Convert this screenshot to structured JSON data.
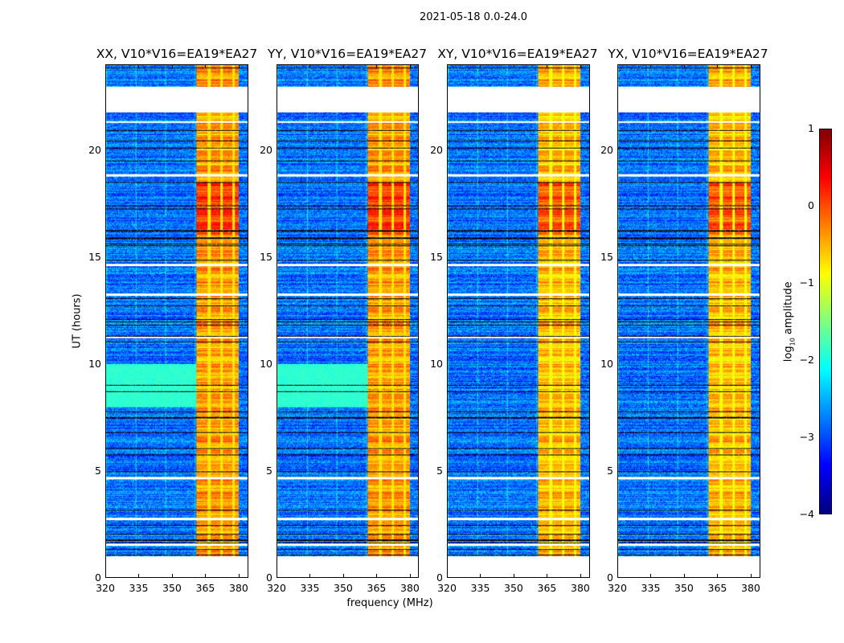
{
  "suptitle": "2021-05-18 0.0-24.0",
  "chart_data": {
    "type": "heatmap",
    "title": "2021-05-18 0.0-24.0",
    "xlabel": "frequency (MHz)",
    "ylabel": "UT (hours)",
    "xlim": [
      320,
      384
    ],
    "ylim": [
      0,
      24
    ],
    "xticks": [
      "320",
      "335",
      "350",
      "365",
      "380"
    ],
    "yticks": [
      "0",
      "5",
      "10",
      "15",
      "20"
    ],
    "panels": [
      {
        "title": "XX, V10*V16=EA19*EA27",
        "cyan_block_hours": [
          8.0,
          10.0
        ]
      },
      {
        "title": "YY, V10*V16=EA19*EA27",
        "cyan_block_hours": [
          8.0,
          10.0
        ]
      },
      {
        "title": "XY, V10*V16=EA19*EA27",
        "cyan_block_hours": null
      },
      {
        "title": "YX, V10*V16=EA19*EA27",
        "cyan_block_hours": null
      }
    ],
    "rfi_band_mhz": [
      360.5,
      380
    ],
    "flagged_hours": [
      [
        0.1,
        1.0
      ],
      [
        21.8,
        23.0
      ],
      [
        1.5,
        1.6
      ],
      [
        2.7,
        2.8
      ],
      [
        4.6,
        4.7
      ],
      [
        14.6,
        14.7
      ],
      [
        13.2,
        13.3
      ],
      [
        11.2,
        11.3
      ],
      [
        18.8,
        18.9
      ],
      [
        21.3,
        21.4
      ]
    ],
    "colorbar": {
      "label": "log10 amplitude",
      "label_main": "log",
      "label_sub": "10",
      "label_rest": " amplitude",
      "range": [
        -4,
        1
      ],
      "ticks": [
        "1",
        "0",
        "−1",
        "−2",
        "−3",
        "−4"
      ],
      "colormap": "jet"
    }
  }
}
